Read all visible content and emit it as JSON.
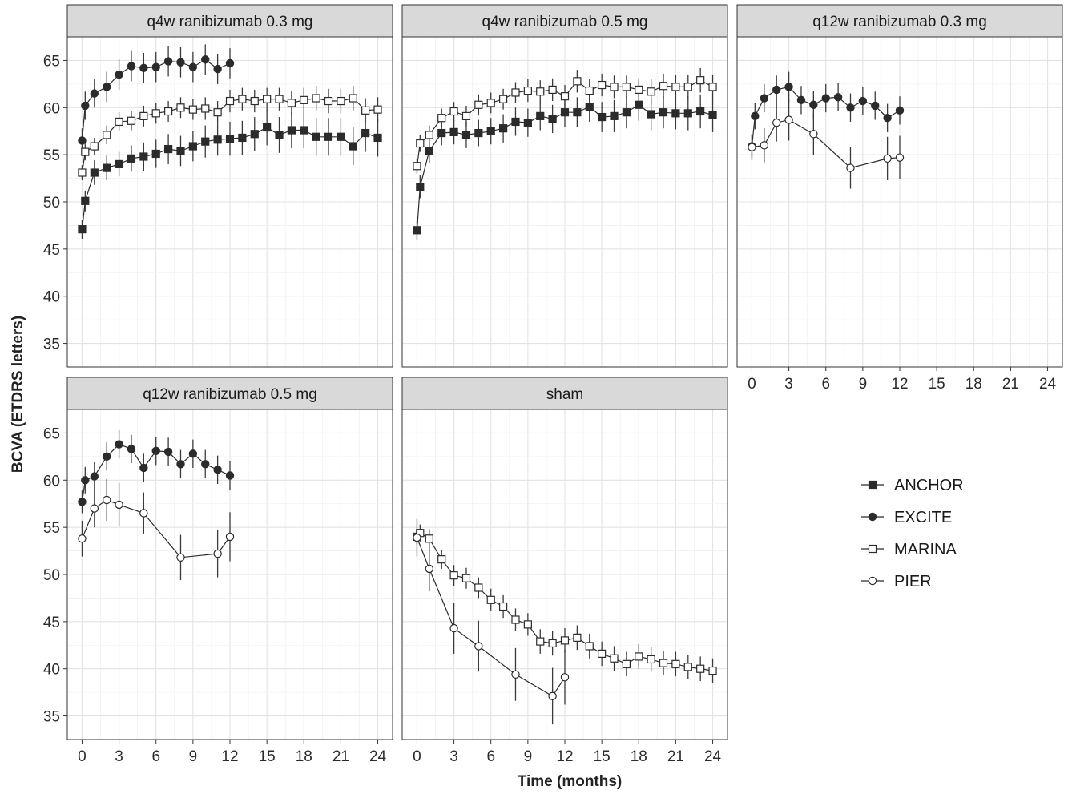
{
  "chart_data": {
    "type": "line",
    "xlabel": "Time (months)",
    "ylabel": "BCVA (ETDRS letters)",
    "xlim": [
      -1.2,
      25.2
    ],
    "ylim": [
      32.5,
      67.5
    ],
    "x_ticks": [
      0,
      3,
      6,
      9,
      12,
      15,
      18,
      21,
      24
    ],
    "y_ticks": [
      35,
      40,
      45,
      50,
      55,
      60,
      65
    ],
    "grid": true,
    "error_bars": true,
    "legend": {
      "position": "right",
      "entries": [
        {
          "label": "ANCHOR",
          "marker": "filled-square"
        },
        {
          "label": "EXCITE",
          "marker": "filled-circle"
        },
        {
          "label": "MARINA",
          "marker": "open-square"
        },
        {
          "label": "PIER",
          "marker": "open-circle"
        }
      ]
    },
    "panels": [
      {
        "title": "q4w ranibizumab 0.3 mg",
        "series": [
          {
            "name": "ANCHOR",
            "x": [
              0,
              0.25,
              1,
              2,
              3,
              4,
              5,
              6,
              7,
              8,
              9,
              10,
              11,
              12,
              13,
              14,
              15,
              16,
              17,
              18,
              19,
              20,
              21,
              22,
              23,
              24
            ],
            "y": [
              47.1,
              50.1,
              53.1,
              53.6,
              54.0,
              54.6,
              54.8,
              55.1,
              55.6,
              55.4,
              55.9,
              56.4,
              56.6,
              56.7,
              56.8,
              57.2,
              57.9,
              57.1,
              57.6,
              57.6,
              56.9,
              56.9,
              56.9,
              55.9,
              57.3,
              56.8
            ],
            "err": [
              1.0,
              1.1,
              1.3,
              1.3,
              1.3,
              1.4,
              1.5,
              1.5,
              1.6,
              1.6,
              1.6,
              1.7,
              1.7,
              1.8,
              1.8,
              1.8,
              1.9,
              1.9,
              1.9,
              1.9,
              2.0,
              2.0,
              2.0,
              2.0,
              2.0,
              2.0
            ]
          },
          {
            "name": "EXCITE",
            "x": [
              0,
              0.25,
              1,
              2,
              3,
              4,
              5,
              6,
              7,
              8,
              9,
              10,
              11,
              12
            ],
            "y": [
              56.5,
              60.2,
              61.5,
              62.2,
              63.5,
              64.4,
              64.2,
              64.3,
              64.9,
              64.8,
              64.3,
              65.1,
              64.1,
              64.7
            ],
            "err": [
              1.3,
              1.5,
              1.5,
              1.6,
              1.6,
              1.6,
              1.6,
              1.6,
              1.6,
              1.6,
              1.6,
              1.6,
              1.6,
              1.6
            ]
          },
          {
            "name": "MARINA",
            "x": [
              0,
              0.25,
              1,
              2,
              3,
              4,
              5,
              6,
              7,
              8,
              9,
              10,
              11,
              12,
              13,
              14,
              15,
              16,
              17,
              18,
              19,
              20,
              21,
              22,
              23,
              24
            ],
            "y": [
              53.1,
              55.3,
              55.9,
              57.1,
              58.5,
              58.6,
              59.1,
              59.4,
              59.6,
              60.0,
              59.8,
              59.9,
              59.5,
              60.7,
              60.9,
              60.7,
              60.9,
              60.9,
              60.5,
              60.8,
              61.0,
              60.7,
              60.7,
              61.0,
              59.7,
              59.8
            ],
            "err": [
              0.8,
              0.9,
              0.9,
              1.0,
              1.0,
              1.0,
              1.1,
              1.1,
              1.1,
              1.1,
              1.1,
              1.2,
              1.2,
              1.2,
              1.2,
              1.2,
              1.2,
              1.2,
              1.3,
              1.3,
              1.3,
              1.3,
              1.3,
              1.3,
              1.3,
              1.3
            ]
          }
        ]
      },
      {
        "title": "q4w ranibizumab 0.5 mg",
        "series": [
          {
            "name": "ANCHOR",
            "x": [
              0,
              0.25,
              1,
              2,
              3,
              4,
              5,
              6,
              7,
              8,
              9,
              10,
              11,
              12,
              13,
              14,
              15,
              16,
              17,
              18,
              19,
              20,
              21,
              22,
              23,
              24
            ],
            "y": [
              47.0,
              51.6,
              55.4,
              57.3,
              57.4,
              57.1,
              57.3,
              57.5,
              57.8,
              58.5,
              58.4,
              59.1,
              58.8,
              59.5,
              59.5,
              60.1,
              59.0,
              59.1,
              59.5,
              60.3,
              59.3,
              59.5,
              59.4,
              59.4,
              59.6,
              59.2
            ],
            "err": [
              1.0,
              1.2,
              1.3,
              1.3,
              1.3,
              1.4,
              1.4,
              1.4,
              1.5,
              1.5,
              1.5,
              1.5,
              1.5,
              1.6,
              1.6,
              1.6,
              1.6,
              1.7,
              1.7,
              1.7,
              1.7,
              1.7,
              1.7,
              1.8,
              1.8,
              1.8
            ]
          },
          {
            "name": "MARINA",
            "x": [
              0,
              0.25,
              1,
              2,
              3,
              4,
              5,
              6,
              7,
              8,
              9,
              10,
              11,
              12,
              13,
              14,
              15,
              16,
              17,
              18,
              19,
              20,
              21,
              22,
              23,
              24
            ],
            "y": [
              53.8,
              56.2,
              57.1,
              58.9,
              59.6,
              59.1,
              60.3,
              60.5,
              60.9,
              61.6,
              61.8,
              61.7,
              61.9,
              61.2,
              62.8,
              61.8,
              62.4,
              62.2,
              62.2,
              61.9,
              61.7,
              62.3,
              62.2,
              62.2,
              62.9,
              62.2
            ],
            "err": [
              0.8,
              0.9,
              1.0,
              1.0,
              1.0,
              1.1,
              1.1,
              1.1,
              1.1,
              1.1,
              1.2,
              1.2,
              1.2,
              1.2,
              1.2,
              1.2,
              1.2,
              1.2,
              1.2,
              1.2,
              1.3,
              1.3,
              1.3,
              1.3,
              1.3,
              1.3
            ]
          }
        ]
      },
      {
        "title": "q12w ranibizumab 0.3 mg",
        "series": [
          {
            "name": "EXCITE",
            "x": [
              0,
              0.25,
              1,
              2,
              3,
              4,
              5,
              6,
              7,
              8,
              9,
              10,
              11,
              12
            ],
            "y": [
              55.9,
              59.1,
              61.0,
              61.9,
              62.2,
              60.8,
              60.3,
              61.0,
              61.1,
              60.0,
              60.7,
              60.2,
              58.9,
              59.7
            ],
            "err": [
              1.2,
              1.4,
              1.5,
              1.5,
              1.6,
              1.5,
              1.5,
              1.5,
              1.5,
              1.5,
              1.5,
              1.5,
              1.5,
              1.5
            ]
          },
          {
            "name": "PIER",
            "x": [
              0,
              1,
              2,
              3,
              5,
              8,
              11,
              12
            ],
            "y": [
              55.8,
              56.0,
              58.4,
              58.7,
              57.2,
              53.6,
              54.6,
              54.7
            ],
            "err": [
              1.4,
              1.8,
              2.0,
              2.2,
              2.2,
              2.2,
              2.3,
              2.3
            ]
          }
        ]
      },
      {
        "title": "q12w ranibizumab 0.5 mg",
        "series": [
          {
            "name": "EXCITE",
            "x": [
              0,
              0.25,
              1,
              2,
              3,
              4,
              5,
              6,
              7,
              8,
              9,
              10,
              11,
              12
            ],
            "y": [
              57.7,
              60.0,
              60.4,
              62.5,
              63.8,
              63.3,
              61.3,
              63.1,
              63.0,
              61.7,
              62.8,
              61.7,
              61.1,
              60.5
            ],
            "err": [
              1.2,
              1.4,
              1.5,
              1.5,
              1.5,
              1.5,
              1.5,
              1.5,
              1.5,
              1.5,
              1.5,
              1.5,
              1.5,
              1.5
            ]
          },
          {
            "name": "PIER",
            "x": [
              0,
              1,
              2,
              3,
              5,
              8,
              11,
              12
            ],
            "y": [
              53.8,
              57.0,
              57.9,
              57.4,
              56.5,
              51.8,
              52.2,
              54.0
            ],
            "err": [
              1.9,
              2.0,
              2.2,
              2.3,
              2.2,
              2.4,
              2.5,
              2.6
            ]
          }
        ]
      },
      {
        "title": "sham",
        "series": [
          {
            "name": "MARINA",
            "x": [
              0,
              0.25,
              1,
              2,
              3,
              4,
              5,
              6,
              7,
              8,
              9,
              10,
              11,
              12,
              13,
              14,
              15,
              16,
              17,
              18,
              19,
              20,
              21,
              22,
              23,
              24
            ],
            "y": [
              54.0,
              54.4,
              53.8,
              51.6,
              49.9,
              49.6,
              48.6,
              47.3,
              46.6,
              45.2,
              44.7,
              42.9,
              42.7,
              43.0,
              43.3,
              42.4,
              41.6,
              41.1,
              40.5,
              41.3,
              41.0,
              40.6,
              40.5,
              40.2,
              40.0,
              39.8
            ],
            "err": [
              0.8,
              0.9,
              1.0,
              1.0,
              1.1,
              1.1,
              1.1,
              1.2,
              1.2,
              1.2,
              1.2,
              1.3,
              1.3,
              1.3,
              1.3,
              1.3,
              1.3,
              1.3,
              1.3,
              1.3,
              1.3,
              1.3,
              1.3,
              1.3,
              1.3,
              1.3
            ]
          },
          {
            "name": "PIER",
            "x": [
              0,
              1,
              3,
              5,
              8,
              11,
              12
            ],
            "y": [
              53.9,
              50.6,
              44.3,
              42.4,
              39.4,
              37.1,
              39.1
            ],
            "err": [
              2.0,
              2.4,
              2.7,
              2.7,
              2.8,
              3.0,
              2.9
            ]
          }
        ]
      }
    ]
  }
}
